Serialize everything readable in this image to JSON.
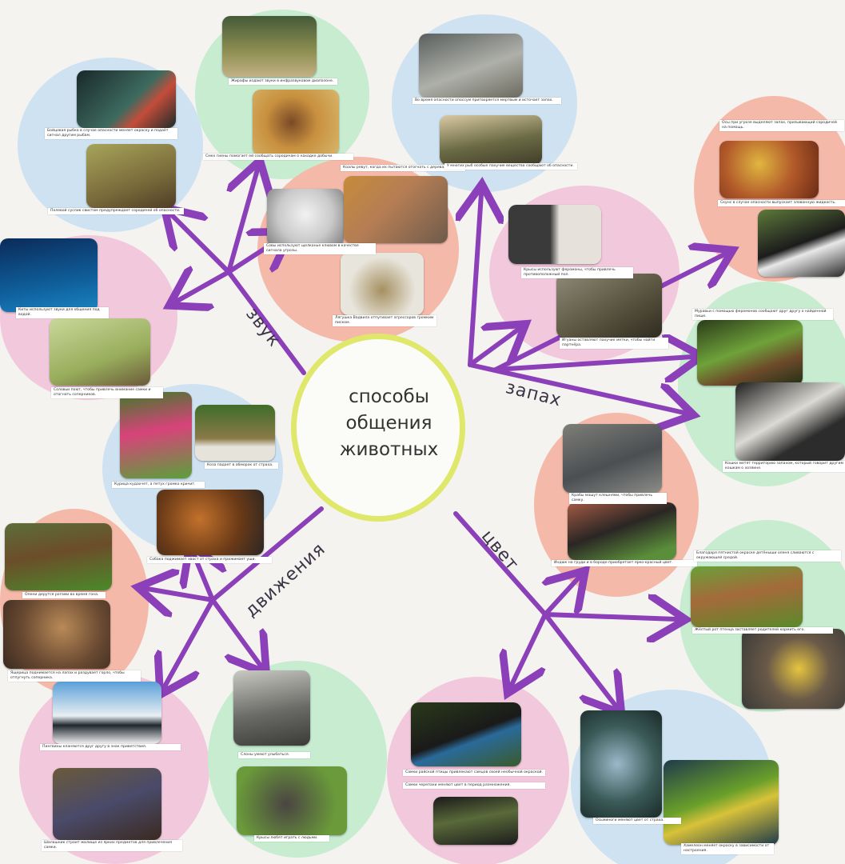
{
  "title_lines": [
    "способы",
    "общения",
    "животных"
  ],
  "branches": {
    "sound": "звук",
    "smell": "запах",
    "color": "цвет",
    "movement": "движения"
  },
  "colors": {
    "arrow": "#8b3fb8",
    "center_ring": "#dfe86a",
    "blob_blue": "#cfe2f1",
    "blob_green": "#c7ecd0",
    "blob_pink": "#f2c9dc",
    "blob_salmon": "#f4b9a9"
  },
  "captions": {
    "fish": "Бойцовая рыбка в случае опасности меняет окраску и подаёт сигнал другим рыбам.",
    "giraffe": "Жирафы издают звуки в инфразвуковом диапазоне.",
    "hyena": "Смех гиены помогает ей сообщать сородичам о находке добычи.",
    "gopher": "Полевой суслик свистом предупреждает сородичей об опасности.",
    "owl": "Совы используют щелканье клювом в качестве сигнала угрозы.",
    "koala": "Коалы ревут, когда их пытаются отогнать с дерева.",
    "frog": "Лягушка Вадвила отпугивает агрессоров громким писком.",
    "whale": "Киты используют звуки для общения под водой.",
    "bird": "Соловьи поют, чтобы привлечь внимание самки и отогнать соперников.",
    "possum": "Во время опасности опоссум притворяется мертвым и источает запах.",
    "fish2": "У многих рыб особые пахучие вещества сообщают об опасности.",
    "wasp": "Осы при угрозе выделяют запах, призывающий сородичей на помощь.",
    "skunk": "Скунс в случае опасности выпускает зловонную жидкость.",
    "mice": "Крысы используют феромоны, чтобы привлечь противоположный пол.",
    "iguana": "Игуаны оставляют пахучие метки, чтобы найти партнёра.",
    "ants": "Муравьи с помощью феромонов сообщают друг другу о найденной пище.",
    "cats": "Кошки метят территорию запахом, который говорит другим кошкам о хозяине.",
    "chicken": "Курица кудахчет, а петух громко кричит.",
    "goat": "Коза падает в обморок от страха.",
    "dog": "Собака поджимает хвост от страха и прижимает уши.",
    "deer": "Олени дерутся рогами во время гона.",
    "lizard": "Ящерица поднимается на лапах и раздувает горло, чтобы отпугнуть соперника.",
    "crab": "Крабы машут клешнями, чтобы привлечь самку.",
    "turkey": "Индюк на груди и в бороде приобретает ярко-красный цвет.",
    "fawns": "Благодаря пятнистой окраске детёныши оленя сливаются с окружающей средой.",
    "chicks": "Жёлтый рот птенца заставляет родителей кормить его.",
    "penguins": "Пингвины кланяются друг другу в знак приветствия.",
    "bowerbird": "Шалашник строит жилище из ярких предметов для привлечения самки.",
    "elephant": "Слоны умеют улыбаться.",
    "mole": "Крысы любят играть с людьми.",
    "paradise": "Самки райской птицы привлекают самцов своей необычной окраской.",
    "turtle": "Самки черепахи меняют цвет в период размножения.",
    "octopus": "Осьминоги меняют цвет от страха.",
    "chameleon": "Хамелеон меняет окраску в зависимости от настроения."
  }
}
